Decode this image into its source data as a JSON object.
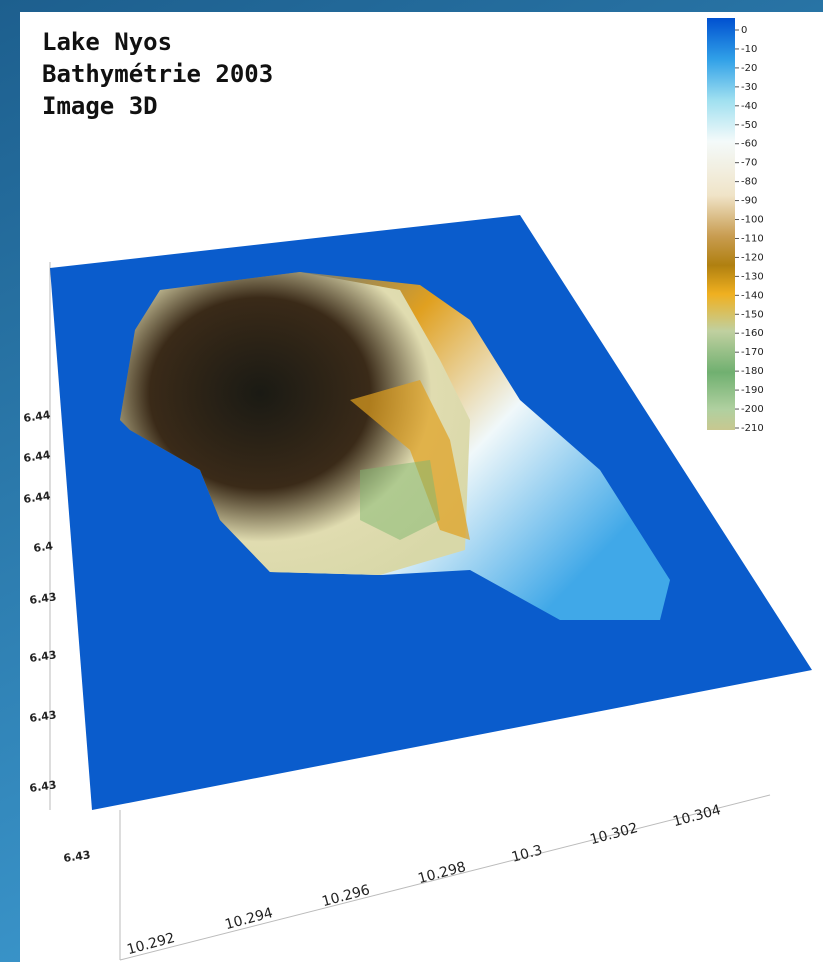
{
  "title_lines": [
    "Lake Nyos",
    "Bathymétrie 2003",
    "Image 3D"
  ],
  "colorbar_labels": [
    "0",
    "-10",
    "-20",
    "-30",
    "-40",
    "-50",
    "-60",
    "-70",
    "-80",
    "-90",
    "-100",
    "-110",
    "-120",
    "-130",
    "-140",
    "-150",
    "-160",
    "-170",
    "-180",
    "-190",
    "-200",
    "-210"
  ],
  "x_axis_labels": [
    "10.292",
    "10.294",
    "10.296",
    "10.298",
    "10.3",
    "10.302",
    "10.304"
  ],
  "y_axis_labels": [
    "6.44",
    "6.44",
    "6.44",
    "6.4",
    "6.43",
    "6.43",
    "6.43",
    "6.43",
    "6.43"
  ]
}
